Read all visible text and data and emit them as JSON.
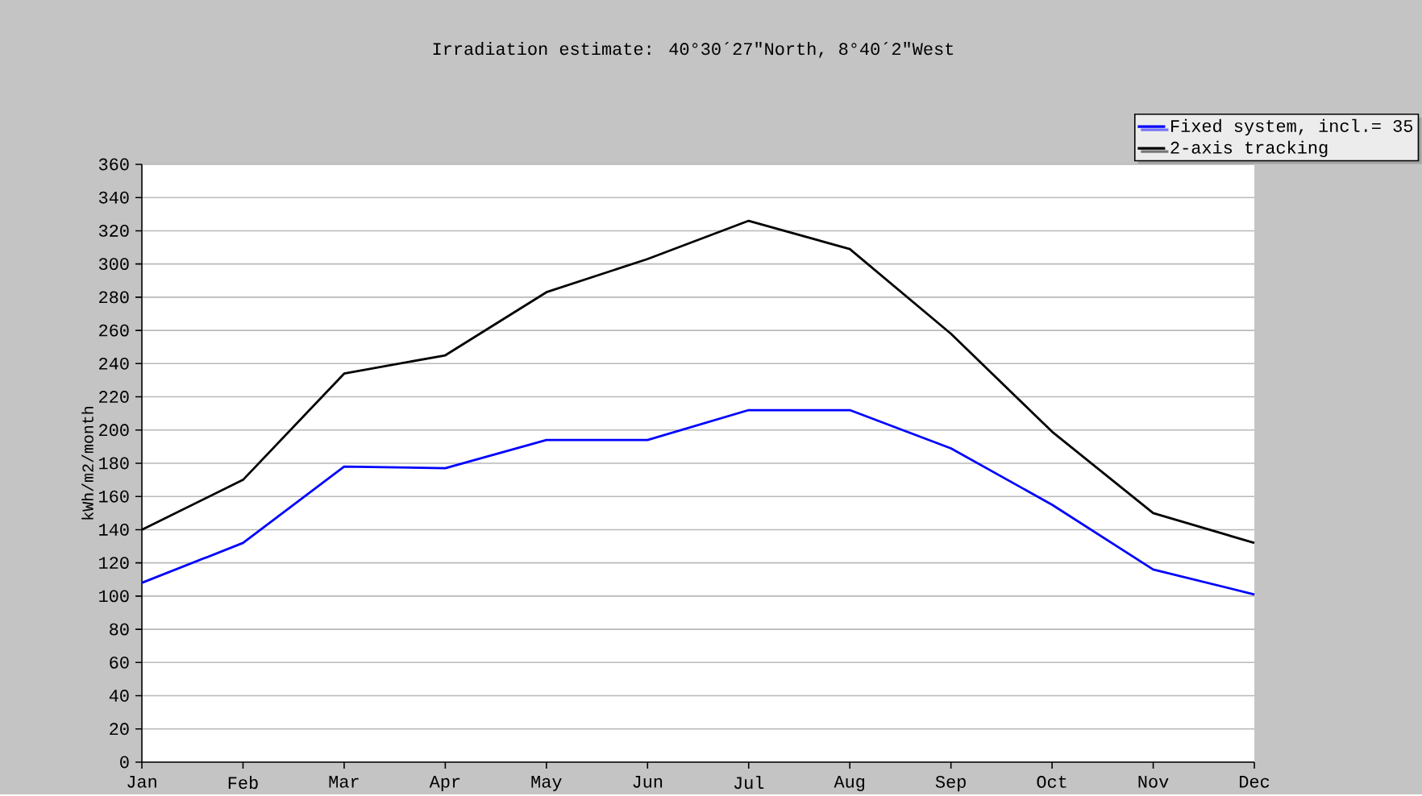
{
  "chart_data": {
    "type": "line",
    "title": "Irradiation estimate:  40°30´27\"North, 8°40´2\"West",
    "ylabel": "kWh/m2/month",
    "categories": [
      "Jan",
      "Feb",
      "Mar",
      "Apr",
      "May",
      "Jun",
      "Jul",
      "Aug",
      "Sep",
      "Oct",
      "Nov",
      "Dec"
    ],
    "series": [
      {
        "name": "Fixed system, incl.= 35",
        "color": "#0000ff",
        "values": [
          108,
          132,
          178,
          177,
          194,
          194,
          212,
          212,
          189,
          155,
          116,
          101
        ]
      },
      {
        "name": "2-axis tracking",
        "color": "#000000",
        "values": [
          140,
          170,
          234,
          245,
          283,
          303,
          326,
          309,
          258,
          199,
          150,
          132
        ]
      }
    ],
    "ylim": [
      0,
      360
    ],
    "yticks": [
      0,
      20,
      40,
      60,
      80,
      100,
      120,
      140,
      160,
      180,
      200,
      220,
      240,
      260,
      280,
      300,
      320,
      340,
      360
    ],
    "grid": "y",
    "legend": "top right",
    "marker": "none",
    "line_style": "solid"
  }
}
